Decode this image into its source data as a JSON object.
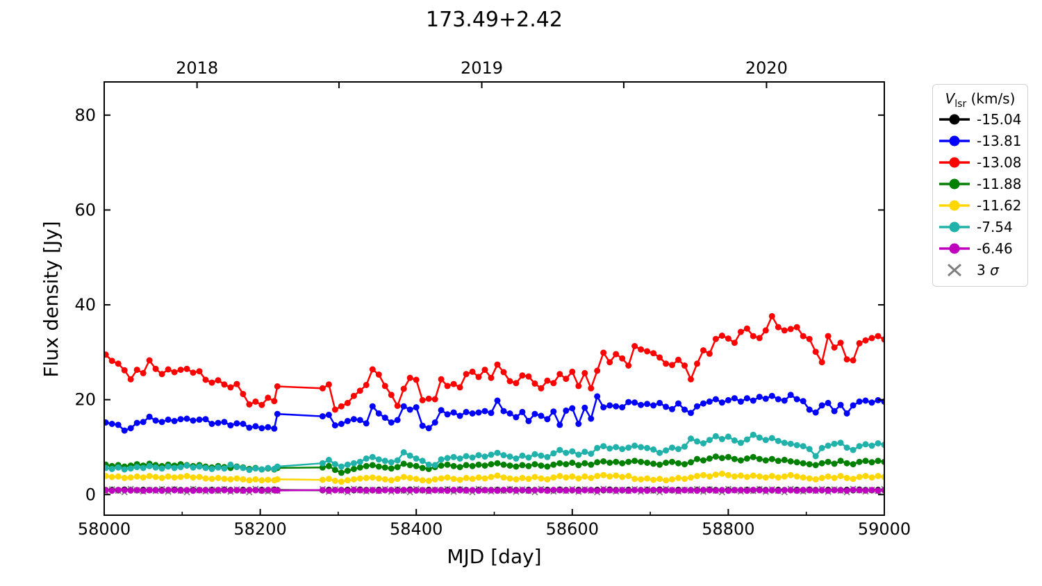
{
  "chart_data": {
    "type": "line",
    "title": "173.49+2.42",
    "xlabel": "MJD [day]",
    "ylabel": "Flux density [Jy]",
    "xlim": [
      58000,
      59000
    ],
    "ylim": [
      -4.35,
      87.0
    ],
    "grid": false,
    "x_ticks_major": [
      58000,
      58200,
      58400,
      58600,
      58800,
      59000
    ],
    "x_ticks_minor": [
      58100,
      58300,
      58500,
      58700,
      58900
    ],
    "y_ticks": [
      0,
      20,
      40,
      60,
      80
    ],
    "top_axis": {
      "ticks_mjd": [
        58119,
        58301,
        58484,
        58666,
        58849
      ],
      "labels": [
        {
          "mjd": 58119,
          "text": "2018"
        },
        {
          "mjd": 58484,
          "text": "2019"
        },
        {
          "mjd": 58849,
          "text": "2020"
        }
      ]
    },
    "legend": {
      "title_symbol": "V",
      "title_subscript": "lsr",
      "title_unit": " (km/s)",
      "position": "upper right outside",
      "sigma_prefix": "3 ",
      "sigma_symbol": "σ"
    },
    "mjd": [
      58002,
      58010,
      58018,
      58026,
      58034,
      58042,
      58050,
      58058,
      58066,
      58074,
      58082,
      58090,
      58098,
      58106,
      58114,
      58122,
      58130,
      58138,
      58146,
      58154,
      58162,
      58170,
      58178,
      58186,
      58194,
      58202,
      58210,
      58218,
      58222,
      58280,
      58288,
      58296,
      58304,
      58312,
      58320,
      58328,
      58336,
      58344,
      58352,
      58360,
      58368,
      58376,
      58384,
      58392,
      58400,
      58408,
      58416,
      58424,
      58432,
      58440,
      58448,
      58456,
      58464,
      58472,
      58480,
      58488,
      58496,
      58504,
      58512,
      58520,
      58528,
      58536,
      58544,
      58552,
      58560,
      58568,
      58576,
      58584,
      58592,
      58600,
      58608,
      58616,
      58624,
      58632,
      58640,
      58648,
      58656,
      58664,
      58672,
      58680,
      58688,
      58696,
      58704,
      58712,
      58720,
      58728,
      58736,
      58744,
      58752,
      58760,
      58768,
      58776,
      58784,
      58792,
      58800,
      58808,
      58816,
      58824,
      58832,
      58840,
      58848,
      58856,
      58864,
      58872,
      58880,
      58888,
      58896,
      58904,
      58912,
      58920,
      58928,
      58936,
      58944,
      58952,
      58960,
      58968,
      58976,
      58984,
      58992,
      59000
    ],
    "series": [
      {
        "name": "-15.04",
        "color": "#000000",
        "marker": "circle",
        "values": [
          0.95,
          1.0,
          0.9,
          1.05,
          0.95,
          0.9,
          1.0,
          0.95,
          0.95,
          1.0,
          0.9,
          1.05,
          0.95,
          0.9,
          1.0,
          0.95,
          0.95,
          1.0,
          0.9,
          1.05,
          0.95,
          0.9,
          1.0,
          0.95,
          0.95,
          1.0,
          0.9,
          1.05,
          0.95,
          0.9,
          1.0,
          0.95,
          0.95,
          1.0,
          0.9,
          1.05,
          0.95,
          0.9,
          1.0,
          0.95,
          0.95,
          1.0,
          0.9,
          1.05,
          0.95,
          0.9,
          1.0,
          0.95,
          0.95,
          1.0,
          0.9,
          1.05,
          0.95,
          0.9,
          1.0,
          0.95,
          0.95,
          1.0,
          0.9,
          1.05,
          0.95,
          0.9,
          1.0,
          0.95,
          0.95,
          1.0,
          0.9,
          1.05,
          0.95,
          0.9,
          1.0,
          0.95,
          0.95,
          1.0,
          0.9,
          1.05,
          0.95,
          0.9,
          1.0,
          0.95,
          0.95,
          1.0,
          0.9,
          1.05,
          0.95,
          0.9,
          1.0,
          0.95,
          0.95,
          1.0,
          0.9,
          1.05,
          0.95,
          0.9,
          1.0,
          0.95,
          0.95,
          1.0,
          0.9,
          1.05,
          0.95,
          0.9,
          1.0,
          0.95,
          0.95,
          1.0,
          0.9,
          1.05,
          0.95,
          0.9,
          1.0,
          0.95,
          0.95,
          1.0,
          0.9,
          1.05,
          0.95,
          0.9,
          1.0,
          0.95
        ]
      },
      {
        "name": "-13.81",
        "color": "#0000ff",
        "marker": "circle",
        "values": [
          15.2,
          14.9,
          14.7,
          13.5,
          14.0,
          15.1,
          15.3,
          16.4,
          15.6,
          15.3,
          15.8,
          15.5,
          15.9,
          16.0,
          15.6,
          15.8,
          15.9,
          14.9,
          15.1,
          15.3,
          14.6,
          15.0,
          14.9,
          14.1,
          14.4,
          14.0,
          14.2,
          13.9,
          17.0,
          16.5,
          16.8,
          14.6,
          14.9,
          15.5,
          15.9,
          15.7,
          15.0,
          18.6,
          17.1,
          16.2,
          15.2,
          15.7,
          18.6,
          17.9,
          18.4,
          14.5,
          14.0,
          15.2,
          17.8,
          16.9,
          17.3,
          16.6,
          17.4,
          17.1,
          17.3,
          17.6,
          17.2,
          19.8,
          17.6,
          17.1,
          16.3,
          17.4,
          15.5,
          17.0,
          16.6,
          15.9,
          17.5,
          14.7,
          17.7,
          18.2,
          14.9,
          18.3,
          16.0,
          20.7,
          18.4,
          18.8,
          18.6,
          18.4,
          19.5,
          19.4,
          18.9,
          19.1,
          18.8,
          19.3,
          18.5,
          18.0,
          19.2,
          17.9,
          17.2,
          18.6,
          19.2,
          19.6,
          20.1,
          19.4,
          19.9,
          20.3,
          19.6,
          20.3,
          19.8,
          20.6,
          20.2,
          20.8,
          20.1,
          19.8,
          21.0,
          20.1,
          19.7,
          17.9,
          17.3,
          18.8,
          19.3,
          17.6,
          18.9,
          17.1,
          18.8,
          19.6,
          19.8,
          19.4,
          19.9,
          19.6
        ]
      },
      {
        "name": "-13.08",
        "color": "#ff0000",
        "marker": "circle",
        "values": [
          29.5,
          28.2,
          27.6,
          26.2,
          24.3,
          26.3,
          25.6,
          28.3,
          26.5,
          25.4,
          26.4,
          25.8,
          26.3,
          26.5,
          25.7,
          26.0,
          24.2,
          23.6,
          24.1,
          23.2,
          22.6,
          23.3,
          21.2,
          19.0,
          19.6,
          18.9,
          20.4,
          19.7,
          22.8,
          22.4,
          23.2,
          17.9,
          18.6,
          19.3,
          20.8,
          21.9,
          23.1,
          26.4,
          25.3,
          22.9,
          21.0,
          18.7,
          22.3,
          24.6,
          24.2,
          19.9,
          20.2,
          20.1,
          24.3,
          22.9,
          23.3,
          22.6,
          25.4,
          25.9,
          24.8,
          26.3,
          24.6,
          27.4,
          25.8,
          23.9,
          23.5,
          25.1,
          24.9,
          23.4,
          22.4,
          24.0,
          23.5,
          25.4,
          24.4,
          25.9,
          22.9,
          25.6,
          22.4,
          26.1,
          29.9,
          27.9,
          29.6,
          28.7,
          27.2,
          31.3,
          30.6,
          30.2,
          29.8,
          28.9,
          27.6,
          27.3,
          28.4,
          27.2,
          24.3,
          27.6,
          30.4,
          29.7,
          32.8,
          33.5,
          32.9,
          32.0,
          34.3,
          35.0,
          33.4,
          33.0,
          34.6,
          37.6,
          35.3,
          34.6,
          34.9,
          35.3,
          33.4,
          32.8,
          30.1,
          27.9,
          33.4,
          31.0,
          32.0,
          28.5,
          28.3,
          31.9,
          32.5,
          33.0,
          33.4,
          32.7
        ]
      },
      {
        "name": "-11.88",
        "color": "#008000",
        "marker": "circle",
        "values": [
          6.3,
          6.0,
          6.2,
          5.9,
          6.1,
          6.4,
          6.1,
          6.5,
          6.2,
          6.0,
          6.3,
          6.1,
          6.4,
          6.2,
          6.0,
          6.2,
          5.9,
          5.7,
          6.0,
          5.8,
          5.6,
          5.9,
          5.7,
          5.4,
          5.6,
          5.3,
          5.5,
          5.3,
          5.6,
          5.7,
          6.0,
          5.2,
          4.6,
          5.0,
          5.4,
          5.7,
          6.0,
          6.2,
          5.9,
          5.7,
          5.5,
          5.8,
          6.5,
          6.2,
          6.0,
          5.6,
          5.4,
          5.8,
          6.1,
          6.3,
          6.0,
          5.8,
          6.2,
          6.0,
          6.3,
          6.1,
          6.4,
          6.6,
          6.3,
          6.1,
          5.9,
          6.2,
          6.0,
          6.4,
          6.1,
          5.9,
          6.3,
          6.6,
          6.4,
          6.7,
          6.2,
          6.6,
          6.3,
          6.8,
          7.0,
          6.7,
          6.9,
          6.6,
          6.9,
          7.1,
          6.9,
          6.7,
          6.5,
          6.3,
          6.7,
          6.9,
          6.6,
          6.4,
          6.8,
          7.5,
          7.2,
          7.6,
          8.0,
          7.7,
          7.9,
          7.5,
          7.2,
          7.6,
          7.9,
          7.5,
          7.2,
          7.5,
          7.1,
          7.3,
          7.0,
          6.8,
          6.6,
          6.4,
          6.2,
          6.6,
          6.9,
          6.5,
          7.1,
          6.6,
          6.4,
          6.9,
          7.1,
          6.8,
          7.1,
          6.9
        ]
      },
      {
        "name": "-11.62",
        "color": "#ffd700",
        "marker": "circle",
        "values": [
          3.9,
          3.7,
          3.8,
          3.5,
          3.6,
          3.8,
          3.6,
          3.9,
          3.7,
          3.5,
          3.8,
          3.6,
          3.7,
          3.9,
          3.6,
          3.7,
          3.4,
          3.3,
          3.5,
          3.3,
          3.2,
          3.4,
          3.2,
          3.0,
          3.2,
          3.0,
          3.1,
          3.0,
          3.2,
          3.1,
          3.3,
          2.9,
          2.7,
          3.0,
          3.2,
          3.4,
          3.5,
          3.6,
          3.4,
          3.2,
          3.0,
          3.3,
          3.7,
          3.5,
          3.3,
          3.0,
          2.9,
          3.2,
          3.4,
          3.6,
          3.3,
          3.1,
          3.5,
          3.3,
          3.6,
          3.4,
          3.7,
          4.0,
          3.6,
          3.4,
          3.2,
          3.5,
          3.3,
          3.7,
          3.4,
          3.2,
          3.6,
          3.9,
          3.6,
          3.8,
          3.4,
          3.8,
          3.5,
          3.9,
          4.1,
          3.8,
          4.0,
          3.7,
          3.9,
          3.3,
          3.2,
          3.4,
          3.1,
          3.3,
          3.0,
          3.2,
          3.5,
          3.3,
          3.6,
          3.9,
          4.1,
          3.8,
          4.2,
          4.4,
          4.1,
          3.8,
          4.0,
          3.7,
          4.0,
          3.8,
          3.6,
          3.9,
          3.6,
          3.8,
          4.1,
          3.8,
          3.6,
          3.4,
          3.2,
          3.5,
          3.8,
          3.5,
          3.9,
          3.5,
          3.3,
          3.7,
          3.9,
          3.6,
          3.9,
          3.7
        ]
      },
      {
        "name": "-7.54",
        "color": "#20b2aa",
        "marker": "circle",
        "values": [
          5.6,
          5.4,
          5.7,
          5.3,
          5.5,
          5.8,
          5.6,
          6.0,
          5.7,
          5.5,
          5.9,
          5.6,
          5.8,
          6.1,
          5.7,
          5.9,
          5.6,
          5.4,
          5.7,
          5.5,
          6.3,
          5.8,
          5.6,
          5.2,
          5.5,
          5.3,
          5.6,
          5.4,
          5.9,
          6.6,
          7.3,
          6.4,
          5.9,
          6.3,
          6.6,
          6.9,
          7.6,
          7.9,
          7.4,
          7.1,
          6.8,
          7.2,
          8.9,
          8.2,
          7.6,
          7.1,
          6.3,
          6.2,
          7.4,
          7.7,
          7.9,
          7.6,
          8.1,
          7.8,
          8.3,
          8.0,
          8.4,
          8.8,
          8.3,
          8.0,
          7.6,
          8.2,
          7.8,
          8.5,
          8.2,
          7.9,
          8.7,
          9.4,
          8.8,
          9.1,
          8.4,
          9.0,
          8.6,
          9.8,
          10.2,
          9.7,
          10.0,
          9.6,
          9.9,
          10.3,
          10.0,
          9.8,
          9.5,
          8.8,
          9.3,
          9.9,
          9.6,
          10.1,
          11.8,
          11.2,
          10.8,
          11.5,
          12.3,
          11.7,
          12.2,
          11.4,
          10.9,
          11.6,
          12.6,
          12.0,
          11.5,
          11.9,
          11.3,
          10.9,
          10.7,
          10.4,
          10.2,
          9.6,
          8.1,
          9.8,
          10.3,
          10.7,
          10.9,
          9.9,
          9.4,
          10.2,
          10.6,
          10.3,
          10.8,
          10.5
        ]
      },
      {
        "name": "-6.46",
        "color": "#bf00bf",
        "marker": "circle",
        "values": [
          0.9,
          0.8,
          1.0,
          0.9,
          0.85,
          0.95,
          0.8,
          0.9,
          0.9,
          0.8,
          1.0,
          0.9,
          0.85,
          0.95,
          0.8,
          0.9,
          0.9,
          0.8,
          1.0,
          0.9,
          0.85,
          0.95,
          0.8,
          0.9,
          0.9,
          0.8,
          1.0,
          0.9,
          0.85,
          0.95,
          0.8,
          0.9,
          0.9,
          0.8,
          1.0,
          0.9,
          0.85,
          0.95,
          0.8,
          0.9,
          0.9,
          0.8,
          1.0,
          0.9,
          0.85,
          0.95,
          0.8,
          0.9,
          0.9,
          0.8,
          1.0,
          0.9,
          0.85,
          0.95,
          0.8,
          0.9,
          0.9,
          0.8,
          1.0,
          0.9,
          0.85,
          0.95,
          0.8,
          0.9,
          0.9,
          0.8,
          1.0,
          0.9,
          0.85,
          0.95,
          0.8,
          0.9,
          0.9,
          0.8,
          1.0,
          0.9,
          0.85,
          0.95,
          0.8,
          0.9,
          0.9,
          0.8,
          1.0,
          0.9,
          0.85,
          0.95,
          0.8,
          0.9,
          0.9,
          0.8,
          1.0,
          0.9,
          0.85,
          0.95,
          0.8,
          0.9,
          0.9,
          0.8,
          1.0,
          0.9,
          0.85,
          0.95,
          0.8,
          0.9,
          0.9,
          0.8,
          1.0,
          0.9,
          0.85,
          0.95,
          0.8,
          0.9,
          0.9,
          0.8,
          1.0,
          0.9,
          0.85,
          0.95,
          0.8,
          0.9
        ]
      }
    ],
    "sigma": {
      "name": "3 σ",
      "color": "#7f7f7f",
      "marker": "x",
      "values": [
        0.6,
        1.1,
        0.8,
        0.5,
        1.2,
        0.9,
        0.65,
        1.0,
        0.75,
        1.15,
        0.6,
        1.1,
        0.8,
        0.5,
        1.2,
        0.9,
        0.65,
        1.0,
        0.75,
        1.15,
        0.6,
        1.1,
        0.8,
        0.5,
        1.2,
        0.9,
        0.65,
        1.0,
        0.75,
        1.15,
        0.6,
        1.1,
        0.8,
        0.5,
        1.2,
        0.9,
        0.65,
        1.0,
        0.75,
        1.15,
        0.6,
        1.1,
        0.8,
        0.5,
        1.2,
        0.9,
        0.65,
        1.0,
        0.75,
        1.15,
        0.6,
        1.1,
        0.8,
        0.5,
        1.2,
        0.9,
        0.65,
        1.0,
        0.75,
        1.15,
        0.6,
        1.1,
        0.8,
        0.5,
        1.2,
        0.9,
        0.65,
        1.0,
        0.75,
        1.15,
        0.6,
        1.1,
        0.8,
        0.5,
        1.2,
        0.9,
        0.65,
        1.0,
        0.75,
        1.15,
        0.6,
        1.1,
        0.8,
        0.5,
        1.2,
        0.9,
        0.65,
        1.0,
        0.75,
        1.15,
        0.6,
        1.1,
        0.8,
        0.5,
        1.2,
        0.9,
        0.65,
        1.0,
        0.75,
        1.15,
        0.6,
        1.1,
        0.8,
        0.5,
        1.2,
        0.9,
        0.65,
        1.0,
        0.75,
        1.15,
        0.6,
        1.1,
        0.8,
        0.5,
        1.2,
        0.9,
        0.65,
        1.0,
        0.75,
        1.15
      ]
    }
  }
}
